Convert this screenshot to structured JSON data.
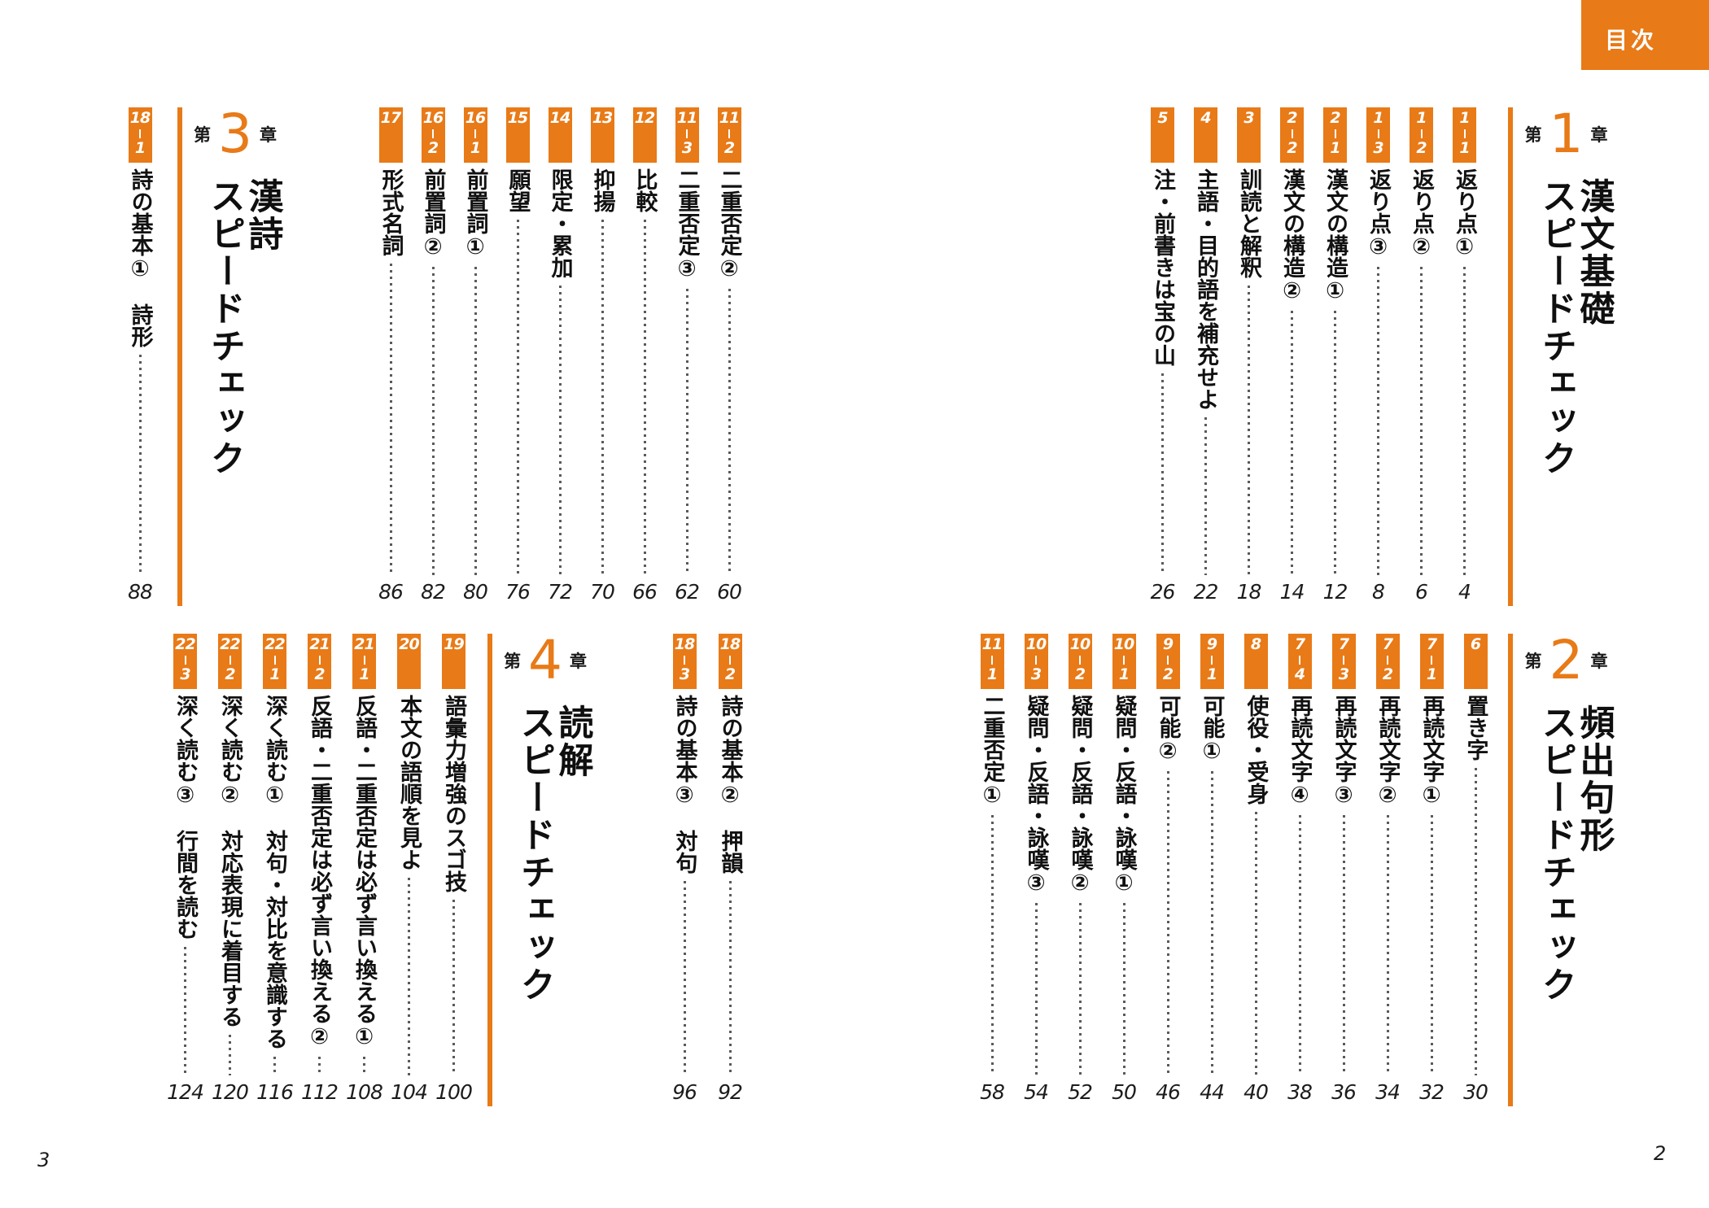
{
  "toc_label": "目次",
  "colors": {
    "accent": "#E87A17"
  },
  "footer": {
    "left_page_number": "3",
    "right_page_number": "2"
  },
  "chapters": [
    {
      "prefix": "第",
      "number": "1",
      "suffix": "章",
      "title": "漢文基礎",
      "subtitle": "スピードチェック",
      "items": [
        {
          "tag": "1-1",
          "label": "返り点①",
          "page": "4"
        },
        {
          "tag": "1-2",
          "label": "返り点②",
          "page": "6"
        },
        {
          "tag": "1-3",
          "label": "返り点③",
          "page": "8"
        },
        {
          "tag": "2-1",
          "label": "漢文の構造①",
          "page": "12"
        },
        {
          "tag": "2-2",
          "label": "漢文の構造②",
          "page": "14"
        },
        {
          "tag": "3",
          "label": "訓読と解釈",
          "page": "18"
        },
        {
          "tag": "4",
          "label": "主語・目的語を補充せよ",
          "page": "22"
        },
        {
          "tag": "5",
          "label": "注・前書きは宝の山",
          "page": "26"
        }
      ]
    },
    {
      "prefix": "第",
      "number": "2",
      "suffix": "章",
      "title": "頻出句形",
      "subtitle": "スピードチェック",
      "items": [
        {
          "tag": "6",
          "label": "置き字",
          "page": "30"
        },
        {
          "tag": "7-1",
          "label": "再読文字①",
          "page": "32"
        },
        {
          "tag": "7-2",
          "label": "再読文字②",
          "page": "34"
        },
        {
          "tag": "7-3",
          "label": "再読文字③",
          "page": "36"
        },
        {
          "tag": "7-4",
          "label": "再読文字④",
          "page": "38"
        },
        {
          "tag": "8",
          "label": "使役・受身",
          "page": "40"
        },
        {
          "tag": "9-1",
          "label": "可能①",
          "page": "44"
        },
        {
          "tag": "9-2",
          "label": "可能②",
          "page": "46"
        },
        {
          "tag": "10-1",
          "label": "疑問・反語・詠嘆①",
          "page": "50"
        },
        {
          "tag": "10-2",
          "label": "疑問・反語・詠嘆②",
          "page": "52"
        },
        {
          "tag": "10-3",
          "label": "疑問・反語・詠嘆③",
          "page": "54"
        },
        {
          "tag": "11-1",
          "label": "二重否定①",
          "page": "58"
        },
        {
          "tag": "11-2",
          "label": "二重否定②",
          "page": "60"
        },
        {
          "tag": "11-3",
          "label": "二重否定③",
          "page": "62"
        },
        {
          "tag": "12",
          "label": "比較",
          "page": "66"
        },
        {
          "tag": "13",
          "label": "抑揚",
          "page": "70"
        },
        {
          "tag": "14",
          "label": "限定・累加",
          "page": "72"
        },
        {
          "tag": "15",
          "label": "願望",
          "page": "76"
        },
        {
          "tag": "16-1",
          "label": "前置詞①",
          "page": "80"
        },
        {
          "tag": "16-2",
          "label": "前置詞②",
          "page": "82"
        },
        {
          "tag": "17",
          "label": "形式名詞",
          "page": "86"
        }
      ]
    },
    {
      "prefix": "第",
      "number": "3",
      "suffix": "章",
      "title": "漢詩",
      "subtitle": "スピードチェック",
      "items": [
        {
          "tag": "18-1",
          "label": "詩の基本①　詩形",
          "page": "88"
        },
        {
          "tag": "18-2",
          "label": "詩の基本②　押韻",
          "page": "92"
        },
        {
          "tag": "18-3",
          "label": "詩の基本③　対句",
          "page": "96"
        }
      ]
    },
    {
      "prefix": "第",
      "number": "4",
      "suffix": "章",
      "title": "読解",
      "subtitle": "スピードチェック",
      "items": [
        {
          "tag": "19",
          "label": "語彙力増強のスゴ技",
          "page": "100"
        },
        {
          "tag": "20",
          "label": "本文の語順を見よ",
          "page": "104"
        },
        {
          "tag": "21-1",
          "label": "反語・二重否定は必ず言い換える①",
          "page": "108"
        },
        {
          "tag": "21-2",
          "label": "反語・二重否定は必ず言い換える②",
          "page": "112"
        },
        {
          "tag": "22-1",
          "label": "深く読む①　対句・対比を意識する",
          "page": "116"
        },
        {
          "tag": "22-2",
          "label": "深く読む②　対応表現に着目する",
          "page": "120"
        },
        {
          "tag": "22-3",
          "label": "深く読む③　行間を読む",
          "page": "124"
        }
      ]
    }
  ]
}
